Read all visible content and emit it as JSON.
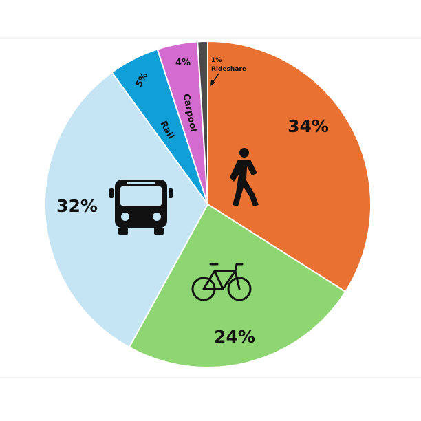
{
  "chart_data": {
    "type": "pie",
    "start_angle_deg": 0,
    "direction": "clockwise",
    "slices": [
      {
        "category": "",
        "icon": "pedestrian-icon",
        "value": 34,
        "label": "34%",
        "color": "#E97132"
      },
      {
        "category": "",
        "icon": "bicycle-icon",
        "value": 24,
        "label": "24%",
        "color": "#8ED672"
      },
      {
        "category": "",
        "icon": "bus-icon",
        "value": 32,
        "label": "32%",
        "color": "#C5E4F4"
      },
      {
        "category": "Rail",
        "icon": "",
        "value": 5,
        "label": "5%",
        "color": "#119FD8"
      },
      {
        "category": "Carpool",
        "icon": "",
        "value": 4,
        "label": "4%",
        "color": "#D46BCF"
      },
      {
        "category": "Rideshare",
        "icon": "",
        "value": 1,
        "label": "1%",
        "color": "#4A4A4A"
      }
    ]
  }
}
